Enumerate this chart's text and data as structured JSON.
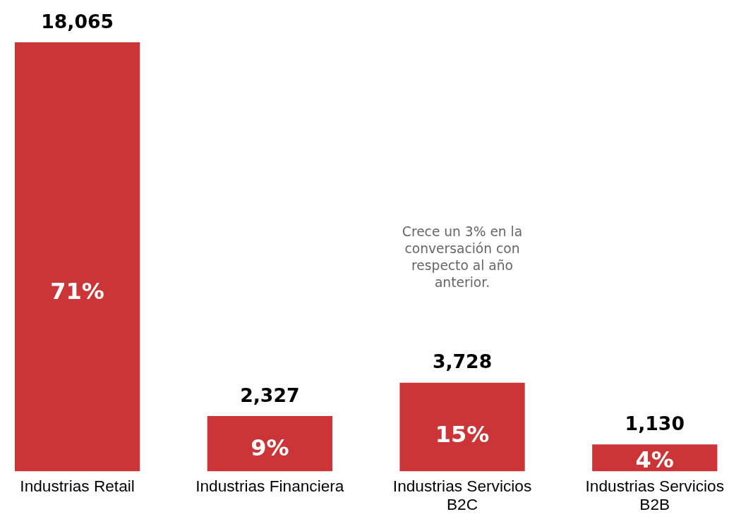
{
  "chart_data": {
    "type": "bar",
    "categories": [
      "Industrias Retail",
      "Industrias Financiera",
      "Industrias Servicios B2C",
      "Industrias Servicios B2B"
    ],
    "values": [
      18065,
      2327,
      3728,
      1130
    ],
    "color": "#cc3538",
    "value_labels": [
      "18,065",
      "2,327",
      "3,728",
      "1,130"
    ],
    "annotations": [
      "71%",
      "9%",
      "15%",
      "4%",
      "Crece un 3% en la conversación con respecto al año anterior."
    ],
    "grid": false
  }
}
